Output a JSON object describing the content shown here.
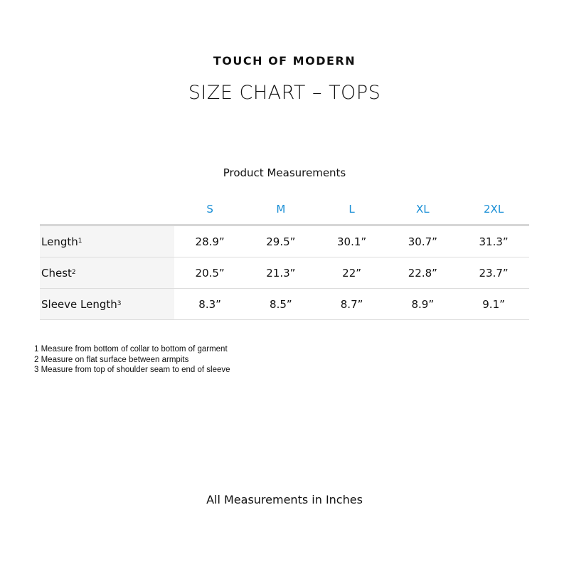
{
  "brand": "TOUCH OF MODERN",
  "title": "SIZE CHART – TOPS",
  "subtitle": "Product Measurements",
  "accent_color": "#1a8fd6",
  "sizes": [
    "S",
    "M",
    "L",
    "XL",
    "2XL"
  ],
  "rows": [
    {
      "label": "Length",
      "note": "1",
      "values": [
        "28.9”",
        "29.5”",
        "30.1”",
        "30.7”",
        "31.3”"
      ]
    },
    {
      "label": "Chest",
      "note": "2",
      "values": [
        "20.5”",
        "21.3”",
        "22”",
        "22.8”",
        "23.7”"
      ]
    },
    {
      "label": "Sleeve Length",
      "note": "3",
      "values": [
        "8.3”",
        "8.5”",
        "8.7”",
        "8.9”",
        "9.1”"
      ]
    }
  ],
  "footnotes": [
    "1 Measure from bottom of collar to bottom of garment",
    "2 Measure on flat surface between armpits",
    "3 Measure from top of shoulder seam to end of sleeve"
  ],
  "footer": "All Measurements in Inches"
}
